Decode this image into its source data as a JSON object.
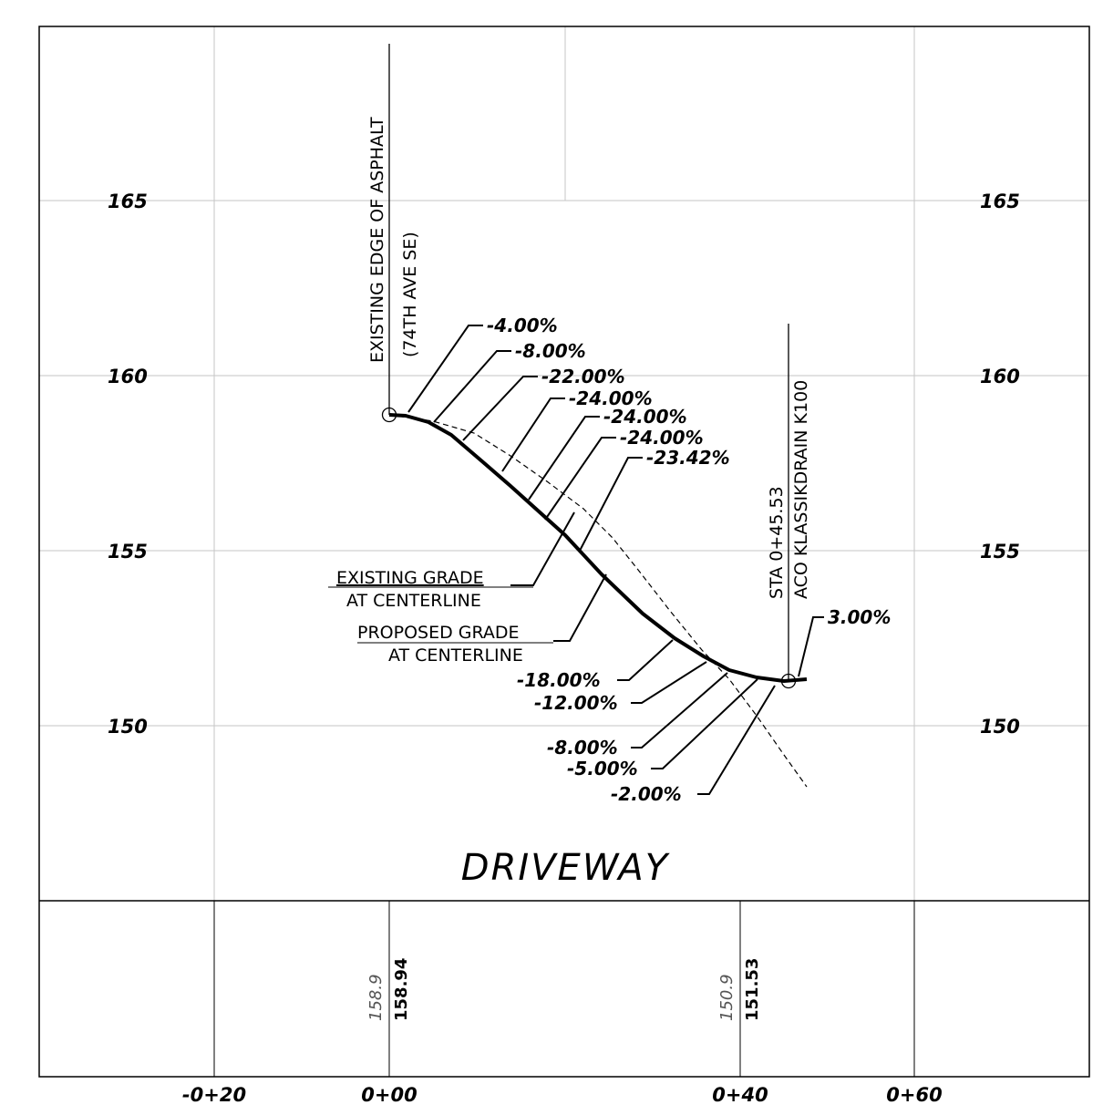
{
  "title": "DRIVEWAY",
  "elevation_labels": [
    "165",
    "160",
    "155",
    "150"
  ],
  "station_labels": [
    "-0+20",
    "0+00",
    "0+40",
    "0+60"
  ],
  "existing_edge_note": {
    "line1": "EXISTING EDGE OF ASPHALT",
    "line2": "(74TH AVE SE)"
  },
  "drain_note": {
    "line1": "STA 0+45.53",
    "line2": "ACO KLASSIKDRAIN K100"
  },
  "existing_grade_label": {
    "line1": "EXISTING GRADE",
    "line2": "AT CENTERLINE"
  },
  "proposed_grade_label": {
    "line1": "PROPOSED GRADE",
    "line2": "AT CENTERLINE"
  },
  "upper_slopes": [
    "-4.00%",
    "-8.00%",
    "-22.00%",
    "-24.00%",
    "-24.00%",
    "-24.00%",
    "-23.42%"
  ],
  "lower_slopes": [
    "-18.00%",
    "-12.00%",
    "-8.00%",
    "-5.00%",
    "-2.00%"
  ],
  "end_slope": "3.00%",
  "bottom_elevations": {
    "start_existing": "158.9",
    "start_proposed": "158.94",
    "end_existing": "150.9",
    "end_proposed": "151.53"
  }
}
